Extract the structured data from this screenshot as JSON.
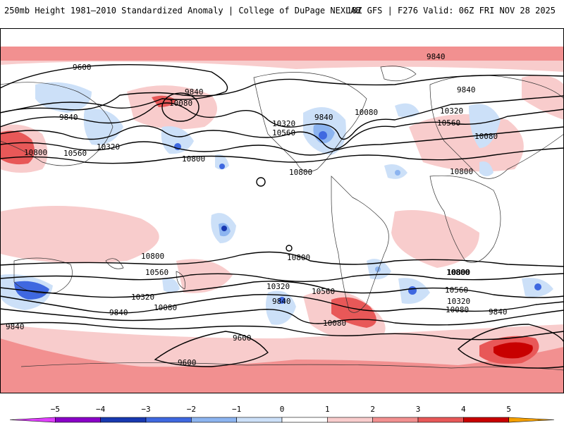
{
  "header": {
    "title": "250mb Height 1981–2010 Standardized Anomaly | College of DuPage NEXLAB",
    "run_info": "18Z GFS | F276 Valid: 06Z FRI NOV 28 2025"
  },
  "contour_labels": [
    {
      "text": "9600"
    },
    {
      "text": "9840"
    },
    {
      "text": "10080"
    },
    {
      "text": "9840"
    },
    {
      "text": "10320"
    },
    {
      "text": "10560"
    },
    {
      "text": "10800"
    },
    {
      "text": "10800"
    },
    {
      "text": "9840"
    },
    {
      "text": "10320"
    },
    {
      "text": "10560"
    },
    {
      "text": "10800"
    },
    {
      "text": "10080"
    },
    {
      "text": "9840"
    },
    {
      "text": "9840"
    },
    {
      "text": "10320"
    },
    {
      "text": "10560"
    },
    {
      "text": "10080"
    },
    {
      "text": "10800"
    },
    {
      "text": "10800"
    },
    {
      "text": "10800"
    },
    {
      "text": "10800"
    },
    {
      "text": "10560"
    },
    {
      "text": "10320"
    },
    {
      "text": "10080"
    },
    {
      "text": "9840"
    },
    {
      "text": "10320"
    },
    {
      "text": "10560"
    },
    {
      "text": "9840"
    },
    {
      "text": "10080"
    },
    {
      "text": "10800"
    },
    {
      "text": "10560"
    },
    {
      "text": "10320"
    },
    {
      "text": "10080"
    },
    {
      "text": "9840"
    },
    {
      "text": "9840"
    },
    {
      "text": "9600"
    },
    {
      "text": "9600"
    }
  ],
  "colorbar": {
    "ticks": [
      "−5",
      "−4",
      "−3",
      "−2",
      "−1",
      "0",
      "1",
      "2",
      "3",
      "4",
      "5"
    ],
    "colors": [
      "#e040ff",
      "#8a00c8",
      "#1838b0",
      "#3f68e0",
      "#8cb4f0",
      "#cce0f8",
      "#ffffff",
      "#f8cccc",
      "#f29090",
      "#e85858",
      "#c80000",
      "#f5a000"
    ]
  }
}
